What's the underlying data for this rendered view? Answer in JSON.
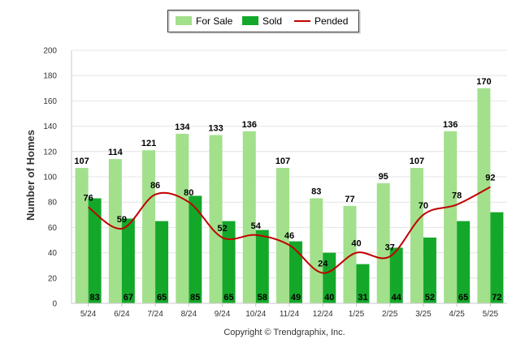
{
  "chart_data": {
    "type": "bar",
    "ylabel": "Number of Homes",
    "ylim": [
      0,
      200
    ],
    "yticks": [
      0,
      20,
      40,
      60,
      80,
      100,
      120,
      140,
      160,
      180,
      200
    ],
    "grid": true,
    "legend_position": "top-center",
    "categories": [
      "5/24",
      "6/24",
      "7/24",
      "8/24",
      "9/24",
      "10/24",
      "11/24",
      "12/24",
      "1/25",
      "2/25",
      "3/25",
      "4/25",
      "5/25"
    ],
    "series": [
      {
        "name": "For Sale",
        "type": "bar",
        "color": "#a2e08c",
        "values": [
          107,
          114,
          121,
          134,
          133,
          136,
          107,
          83,
          77,
          95,
          107,
          136,
          170
        ]
      },
      {
        "name": "Sold",
        "type": "bar",
        "color": "#14a82a",
        "values": [
          83,
          67,
          65,
          85,
          65,
          58,
          49,
          40,
          31,
          44,
          52,
          65,
          72
        ]
      },
      {
        "name": "Pended",
        "type": "line",
        "color": "#c00000",
        "values": [
          76,
          59,
          86,
          80,
          52,
          54,
          46,
          24,
          40,
          37,
          70,
          78,
          92
        ]
      }
    ]
  },
  "footer": {
    "copyright": "Copyright © Trendgraphix, Inc."
  }
}
